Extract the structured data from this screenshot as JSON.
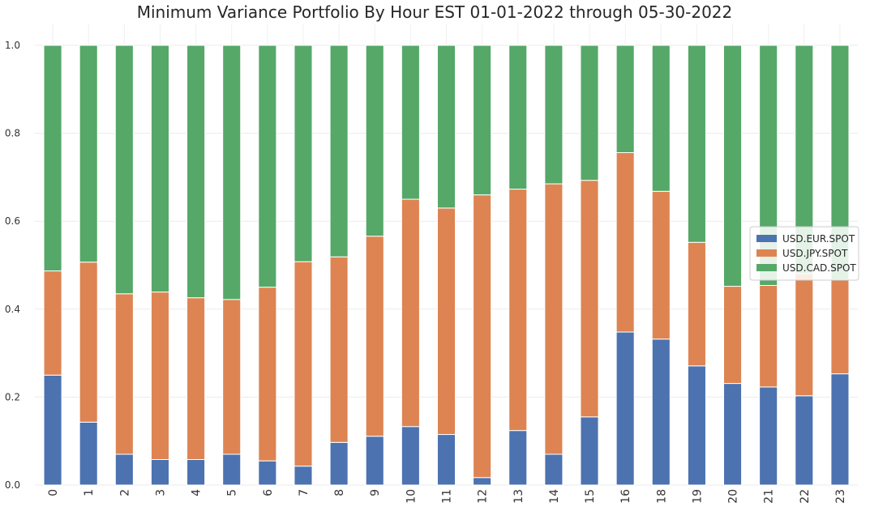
{
  "chart_data": {
    "type": "bar",
    "stacked": true,
    "title": "Minimum Variance Portfolio By Hour EST 01-01-2022 through 05-30-2022",
    "xlabel": "",
    "ylabel": "",
    "ylim": [
      0,
      1.0
    ],
    "yticks": [
      "0.0",
      "0.2",
      "0.4",
      "0.6",
      "0.8",
      "1.0"
    ],
    "grid": true,
    "legend_position": "center-right",
    "categories": [
      "0",
      "1",
      "2",
      "3",
      "4",
      "5",
      "6",
      "7",
      "8",
      "9",
      "10",
      "11",
      "12",
      "13",
      "14",
      "15",
      "16",
      "18",
      "19",
      "20",
      "21",
      "22",
      "23"
    ],
    "series": [
      {
        "name": "USD.EUR.SPOT",
        "color": "#4c72b0",
        "values": [
          0.25,
          0.143,
          0.07,
          0.058,
          0.058,
          0.07,
          0.055,
          0.043,
          0.097,
          0.111,
          0.133,
          0.115,
          0.017,
          0.124,
          0.07,
          0.155,
          0.348,
          0.332,
          0.271,
          0.231,
          0.223,
          0.203,
          0.253
        ]
      },
      {
        "name": "USD.JPY.SPOT",
        "color": "#dd8452",
        "values": [
          0.237,
          0.364,
          0.365,
          0.381,
          0.368,
          0.352,
          0.395,
          0.465,
          0.422,
          0.455,
          0.517,
          0.515,
          0.643,
          0.549,
          0.615,
          0.538,
          0.408,
          0.336,
          0.281,
          0.221,
          0.231,
          0.278,
          0.214
        ]
      },
      {
        "name": "USD.CAD.SPOT",
        "color": "#55a868",
        "values": [
          0.513,
          0.493,
          0.565,
          0.561,
          0.574,
          0.578,
          0.55,
          0.492,
          0.481,
          0.434,
          0.35,
          0.37,
          0.34,
          0.327,
          0.315,
          0.307,
          0.244,
          0.332,
          0.448,
          0.548,
          0.546,
          0.519,
          0.533
        ]
      }
    ]
  }
}
